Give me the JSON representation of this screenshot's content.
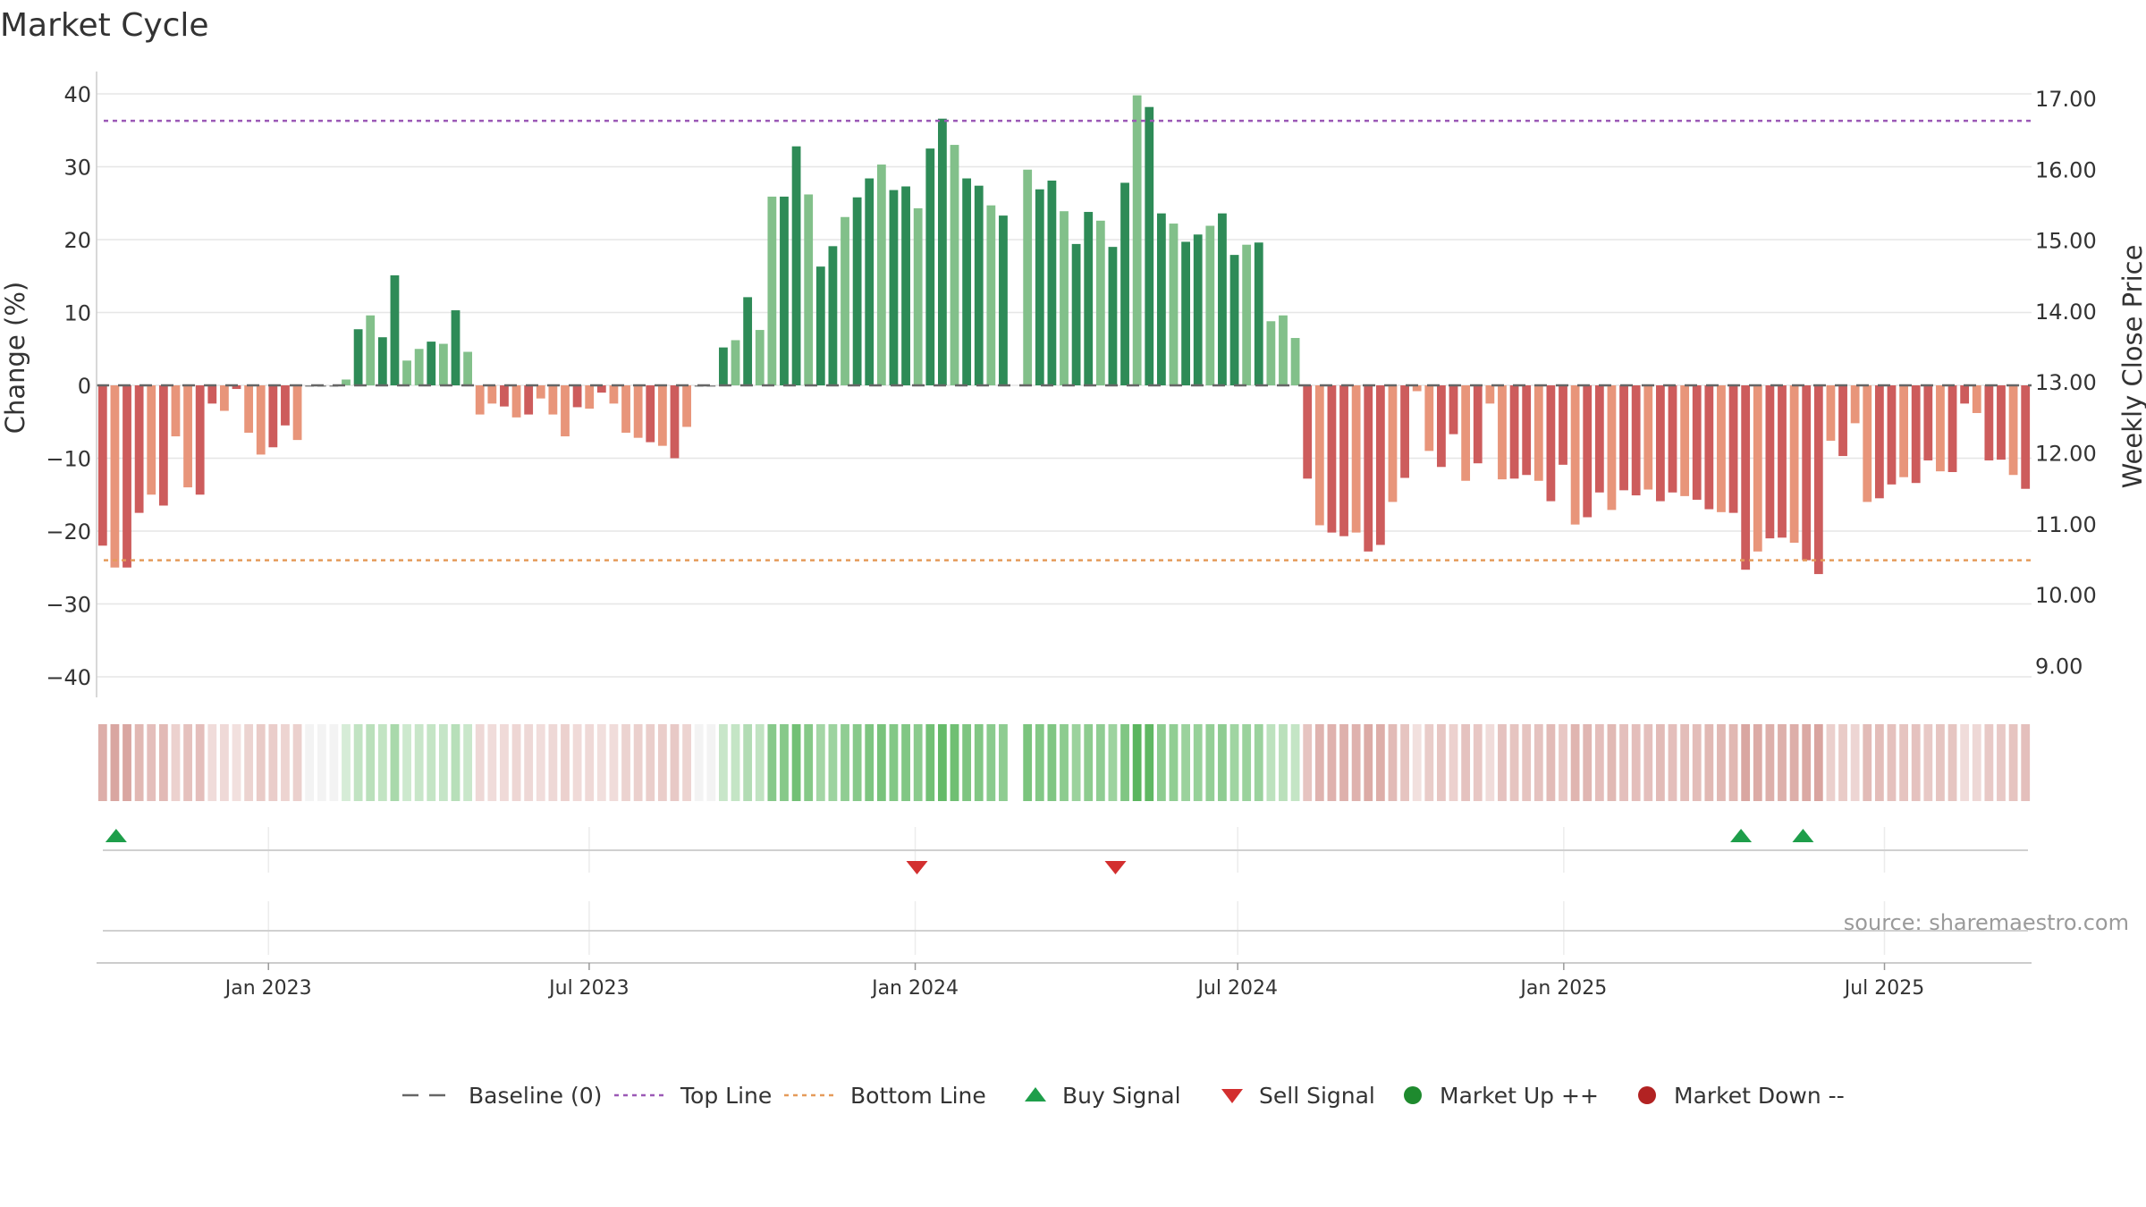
{
  "chart_data": {
    "type": "bar",
    "title": "Market Cycle",
    "ylabel": "Change (%)",
    "y2label": "Weekly Close Price",
    "source": "source: sharemaestro.com",
    "ylim": [
      -44,
      40
    ],
    "y_ticks": [
      40,
      30,
      20,
      10,
      0,
      -10,
      -20,
      -30,
      -40
    ],
    "y_tick_labels": [
      "40",
      "30",
      "20",
      "10",
      "0",
      "−10",
      "−20",
      "−30",
      "−40"
    ],
    "y2_ticks": [
      "17.00",
      "16.00",
      "15.00",
      "14.00",
      "13.00",
      "12.00",
      "11.00",
      "10.00",
      "9.00"
    ],
    "top_line": 36.3,
    "bottom_line": -24,
    "baseline": 0,
    "x_range": [
      "2022-09-26",
      "2025-09-22"
    ],
    "x_ticks": [
      {
        "date": "2023-01-01",
        "label": "Jan 2023"
      },
      {
        "date": "2023-07-01",
        "label": "Jul 2023"
      },
      {
        "date": "2024-01-01",
        "label": "Jan 2024"
      },
      {
        "date": "2024-07-01",
        "label": "Jul 2024"
      },
      {
        "date": "2025-01-01",
        "label": "Jan 2025"
      },
      {
        "date": "2025-07-01",
        "label": "Jul 2025"
      }
    ],
    "series": [
      {
        "name": "Weekly change (%)",
        "start_week": "2022-09-26",
        "values": [
          -22,
          -25,
          -25,
          -17.5,
          -15,
          -16.5,
          -7,
          -14,
          -15,
          -2.5,
          -3.5,
          -0.5,
          -6.5,
          -9.5,
          -8.5,
          -5.5,
          -7.5,
          0,
          0,
          0,
          0.8,
          7.7,
          9.6,
          6.6,
          15.1,
          3.4,
          5,
          6,
          5.7,
          10.3,
          4.6,
          -4,
          -2.5,
          -2.9,
          -4.4,
          -4,
          -1.8,
          -4,
          -7,
          -3,
          -3.2,
          -1,
          -2.5,
          -6.5,
          -7.2,
          -7.8,
          -8.3,
          -10,
          -5.7,
          0,
          0,
          5.2,
          6.2,
          12.1,
          7.6,
          25.9,
          25.9,
          32.8,
          26.2,
          16.3,
          19.1,
          23.1,
          25.8,
          28.4,
          30.3,
          26.8,
          27.3,
          24.3,
          32.5,
          36.6,
          33,
          28.4,
          27.4,
          24.7,
          23.3,
          null,
          29.6,
          26.9,
          28.1,
          23.9,
          19.4,
          23.8,
          22.6,
          19,
          27.8,
          39.8,
          38.2,
          23.6,
          22.2,
          19.7,
          20.7,
          21.9,
          23.6,
          17.9,
          19.3,
          19.6,
          8.8,
          9.6,
          6.5,
          -12.8,
          -19.2,
          -20.2,
          -20.7,
          -20.2,
          -22.8,
          -21.9,
          -16,
          -12.7,
          -0.8,
          -9,
          -11.2,
          -6.7,
          -13.1,
          -10.7,
          -2.5,
          -12.9,
          -12.8,
          -12.3,
          -13.1,
          -15.9,
          -10.9,
          -19.1,
          -18.1,
          -14.7,
          -17.1,
          -14.4,
          -15.1,
          -14.3,
          -15.9,
          -14.7,
          -15.2,
          -15.7,
          -17,
          -17.4,
          -17.5,
          -25.3,
          -22.8,
          -21,
          -20.9,
          -21.6,
          -24,
          -25.9,
          -7.6,
          -9.7,
          -5.2,
          -16,
          -15.5,
          -13.6,
          -12.6,
          -13.4,
          -10.3,
          -11.8,
          -11.9,
          -2.5,
          -3.8,
          -10.3,
          -10.2,
          -12.3,
          -14.2
        ]
      }
    ],
    "heat_band": {
      "name": "Market intensity band"
    },
    "signals": {
      "buy": [
        "2022-10-03",
        "2025-04-07",
        "2025-05-12"
      ],
      "sell": [
        "2024-01-01",
        "2024-04-22"
      ]
    },
    "legend": {
      "position": "bottom-center",
      "items": [
        {
          "label": "Baseline (0)",
          "symbol": "dash",
          "color": "#666666"
        },
        {
          "label": "Top Line",
          "symbol": "dotted",
          "color": "#9b59b6"
        },
        {
          "label": "Bottom Line",
          "symbol": "dotted",
          "color": "#e59b5a"
        },
        {
          "label": "Buy Signal",
          "symbol": "triangle-up",
          "color": "#1e9e4a"
        },
        {
          "label": "Sell Signal",
          "symbol": "triangle-down",
          "color": "#d32f2f"
        },
        {
          "label": "Market Up ++",
          "symbol": "circle",
          "color": "#1e8a2e"
        },
        {
          "label": "Market Down --",
          "symbol": "circle",
          "color": "#b22222"
        }
      ]
    },
    "colors": {
      "up_strong": "#2e8b57",
      "up_weak": "#82c08a",
      "down_strong": "#cd5c5c",
      "down_weak": "#e8957a",
      "top_line": "#9b59b6",
      "bottom_line": "#e59b5a",
      "grid": "#e6e6e6"
    },
    "grid": true
  }
}
